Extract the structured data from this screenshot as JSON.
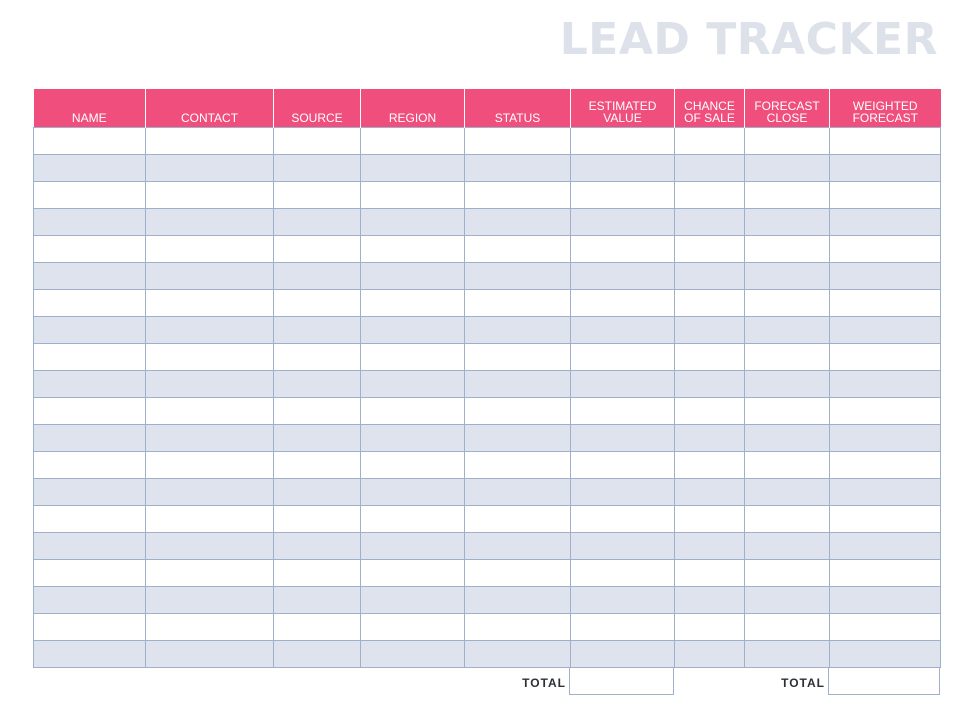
{
  "document": {
    "title": "LEAD TRACKER"
  },
  "table": {
    "columns": [
      {
        "key": "name",
        "label": "NAME"
      },
      {
        "key": "contact",
        "label": "CONTACT"
      },
      {
        "key": "source",
        "label": "SOURCE"
      },
      {
        "key": "region",
        "label": "REGION"
      },
      {
        "key": "status",
        "label": "STATUS"
      },
      {
        "key": "estimated_value",
        "label": "ESTIMATED\nVALUE"
      },
      {
        "key": "chance_of_sale",
        "label": "CHANCE\nOF SALE"
      },
      {
        "key": "forecast_close",
        "label": "FORECAST\nCLOSE"
      },
      {
        "key": "weighted_forecast",
        "label": "WEIGHTED\nFORECAST"
      }
    ],
    "rows": [
      [
        "",
        "",
        "",
        "",
        "",
        "",
        "",
        "",
        ""
      ],
      [
        "",
        "",
        "",
        "",
        "",
        "",
        "",
        "",
        ""
      ],
      [
        "",
        "",
        "",
        "",
        "",
        "",
        "",
        "",
        ""
      ],
      [
        "",
        "",
        "",
        "",
        "",
        "",
        "",
        "",
        ""
      ],
      [
        "",
        "",
        "",
        "",
        "",
        "",
        "",
        "",
        ""
      ],
      [
        "",
        "",
        "",
        "",
        "",
        "",
        "",
        "",
        ""
      ],
      [
        "",
        "",
        "",
        "",
        "",
        "",
        "",
        "",
        ""
      ],
      [
        "",
        "",
        "",
        "",
        "",
        "",
        "",
        "",
        ""
      ],
      [
        "",
        "",
        "",
        "",
        "",
        "",
        "",
        "",
        ""
      ],
      [
        "",
        "",
        "",
        "",
        "",
        "",
        "",
        "",
        ""
      ],
      [
        "",
        "",
        "",
        "",
        "",
        "",
        "",
        "",
        ""
      ],
      [
        "",
        "",
        "",
        "",
        "",
        "",
        "",
        "",
        ""
      ],
      [
        "",
        "",
        "",
        "",
        "",
        "",
        "",
        "",
        ""
      ],
      [
        "",
        "",
        "",
        "",
        "",
        "",
        "",
        "",
        ""
      ],
      [
        "",
        "",
        "",
        "",
        "",
        "",
        "",
        "",
        ""
      ],
      [
        "",
        "",
        "",
        "",
        "",
        "",
        "",
        "",
        ""
      ],
      [
        "",
        "",
        "",
        "",
        "",
        "",
        "",
        "",
        ""
      ],
      [
        "",
        "",
        "",
        "",
        "",
        "",
        "",
        "",
        ""
      ],
      [
        "",
        "",
        "",
        "",
        "",
        "",
        "",
        "",
        ""
      ],
      [
        "",
        "",
        "",
        "",
        "",
        "",
        "",
        "",
        ""
      ]
    ]
  },
  "totals": {
    "estimated_value_label": "TOTAL",
    "estimated_value": "",
    "weighted_forecast_label": "TOTAL",
    "weighted_forecast": ""
  },
  "colors": {
    "header_background": "#f04e7d",
    "header_text": "#ffffff",
    "title_text": "#dde1ea",
    "stripe_row": "#dfe3ed",
    "grid_line": "#9fb0ca"
  }
}
